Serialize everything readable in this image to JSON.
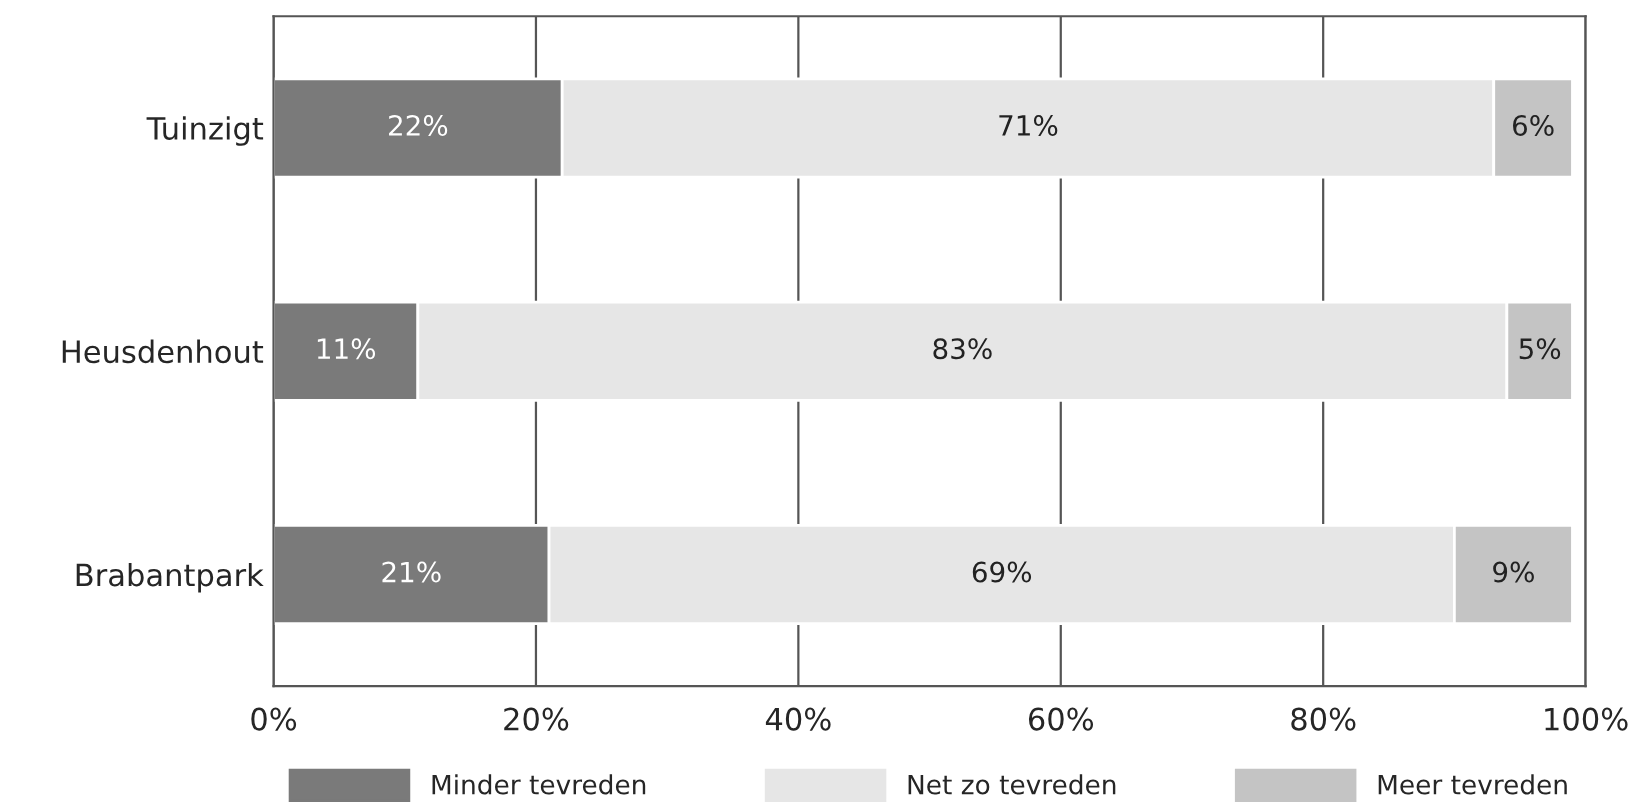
{
  "chart_data": {
    "type": "bar",
    "orientation": "horizontal",
    "stacked": true,
    "categories": [
      "Tuinzigt",
      "Heusdenhout",
      "Brabantpark"
    ],
    "series": [
      {
        "name": "Minder tevreden",
        "color": "#7a7a7a",
        "values": [
          22,
          11,
          21
        ],
        "value_labels": [
          "22%",
          "11%",
          "21%"
        ]
      },
      {
        "name": "Net zo tevreden",
        "color": "#e6e6e6",
        "values": [
          71,
          83,
          69
        ],
        "value_labels": [
          "71%",
          "83%",
          "69%"
        ]
      },
      {
        "name": "Meer tevreden",
        "color": "#c4c4c4",
        "values": [
          6,
          5,
          9
        ],
        "value_labels": [
          "6%",
          "5%",
          "9%"
        ]
      }
    ],
    "xlim": [
      0,
      100
    ],
    "xticks": [
      {
        "value": 0,
        "label": "0%"
      },
      {
        "value": 20,
        "label": "20%"
      },
      {
        "value": 40,
        "label": "40%"
      },
      {
        "value": 60,
        "label": "60%"
      },
      {
        "value": 80,
        "label": "80%"
      },
      {
        "value": 100,
        "label": "100%"
      }
    ],
    "grid": "x",
    "legend": "bottom"
  }
}
